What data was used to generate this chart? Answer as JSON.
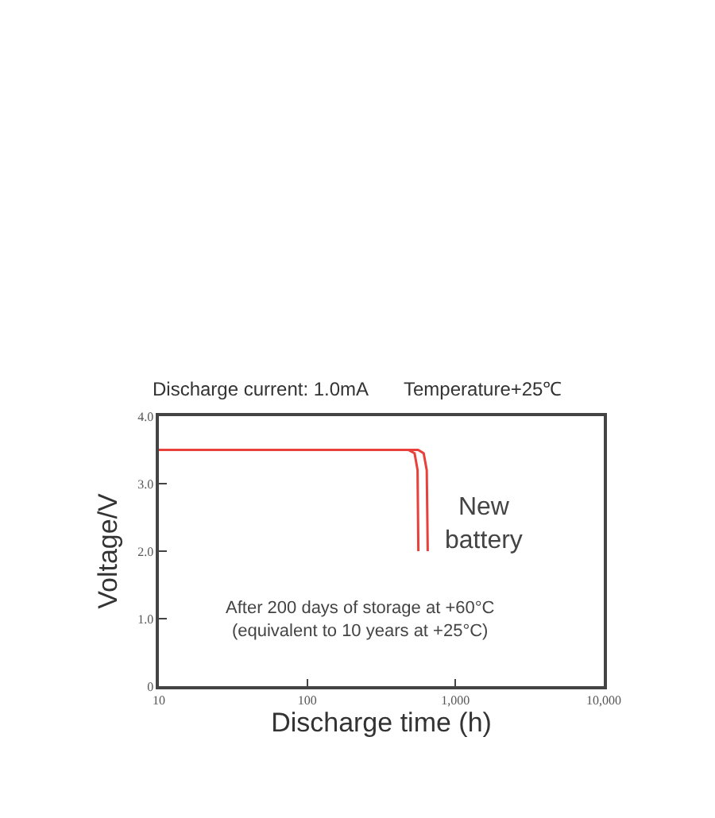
{
  "chart_data": {
    "type": "line",
    "xlabel": "Discharge time (h)",
    "ylabel": "Voltage/V",
    "log": "x",
    "xlim": [
      10,
      10000
    ],
    "ylim": [
      0,
      4
    ],
    "xticks": [
      10,
      100,
      {
        "value": 1000,
        "label": "1,000"
      },
      {
        "value": 10000,
        "label": "10,000"
      }
    ],
    "yticks": [
      0,
      {
        "value": 1,
        "label": "1.0"
      },
      {
        "value": 2,
        "label": "2.0"
      },
      {
        "value": 3,
        "label": "3.0"
      },
      {
        "value": 4,
        "label": "4.0"
      }
    ],
    "marker": "none",
    "line_style": "solid",
    "series": [
      {
        "color": "#e8403a",
        "x": [
          10,
          480,
          530,
          555,
          562
        ],
        "values": [
          3.5,
          3.5,
          3.45,
          3.2,
          2.0
        ]
      },
      {
        "color": "#e8403a",
        "x": [
          10,
          560,
          610,
          640,
          650
        ],
        "values": [
          3.5,
          3.5,
          3.45,
          3.2,
          2.0
        ]
      }
    ],
    "annotations": [
      "Discharge current: 1.0mA",
      "Temperature+25℃",
      "New\nbattery",
      "After 200 days of storage at +60°C\n(equivalent to 10 years at +25°C)"
    ]
  }
}
